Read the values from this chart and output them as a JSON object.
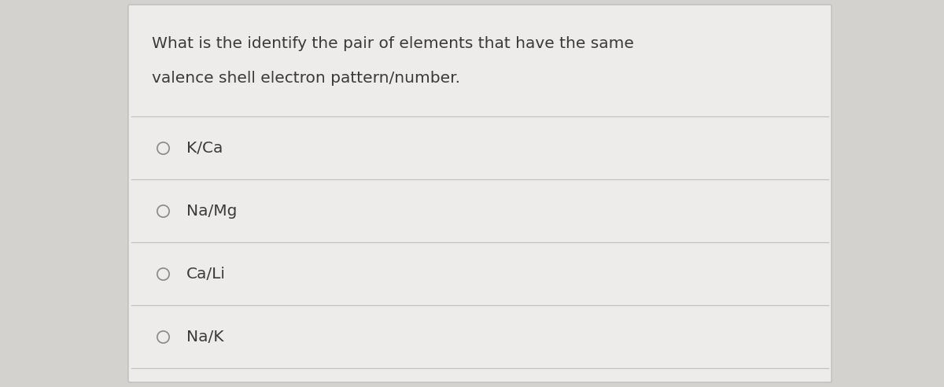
{
  "question_line1": "What is the identify the pair of elements that have the same",
  "question_line2": "valence shell electron pattern/number.",
  "options": [
    "K/Ca",
    "Na/Mg",
    "Ca/Li",
    "Na/K"
  ],
  "background_color": "#d4d2cf",
  "card_color": "#edecea",
  "text_color": "#3a3a3a",
  "line_color": "#c5c3c0",
  "circle_edge_color": "#888888",
  "question_fontsize": 14.5,
  "option_fontsize": 14.5
}
